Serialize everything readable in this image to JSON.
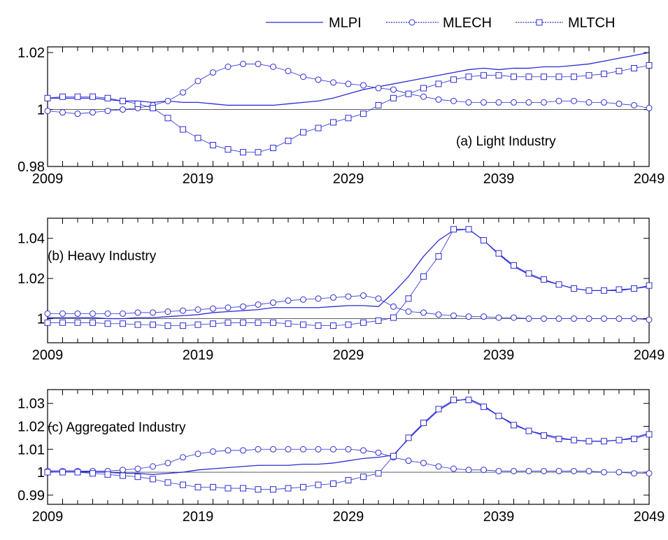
{
  "colors": {
    "series": "#2b2bd6",
    "axis": "#000000",
    "reference": "#000000"
  },
  "legend": {
    "placement": "top-right",
    "items": [
      {
        "name": "MLPI",
        "marker": "none"
      },
      {
        "name": "MLECH",
        "marker": "circle"
      },
      {
        "name": "MLTCH",
        "marker": "square"
      }
    ]
  },
  "chart_data": [
    {
      "type": "line",
      "title": "(a) Light Industry",
      "x": [
        2009,
        2010,
        2011,
        2012,
        2013,
        2014,
        2015,
        2016,
        2017,
        2018,
        2019,
        2020,
        2021,
        2022,
        2023,
        2024,
        2025,
        2026,
        2027,
        2028,
        2029,
        2030,
        2031,
        2032,
        2033,
        2034,
        2035,
        2036,
        2037,
        2038,
        2039,
        2040,
        2041,
        2042,
        2043,
        2044,
        2045,
        2046,
        2047,
        2048,
        2049
      ],
      "xticks": [
        2009,
        2019,
        2029,
        2039,
        2049
      ],
      "yticks": [
        0.98,
        1,
        1.02
      ],
      "ylim": [
        0.98,
        1.022
      ],
      "reference_line": 1,
      "series": [
        {
          "name": "MLPI",
          "marker": "none",
          "values": [
            1.004,
            1.004,
            1.004,
            1.004,
            1.0035,
            1.003,
            1.003,
            1.0025,
            1.003,
            1.0025,
            1.0025,
            1.002,
            1.0015,
            1.0015,
            1.0015,
            1.0015,
            1.002,
            1.0025,
            1.003,
            1.004,
            1.0055,
            1.007,
            1.008,
            1.009,
            1.01,
            1.011,
            1.012,
            1.013,
            1.014,
            1.0145,
            1.014,
            1.0145,
            1.0145,
            1.015,
            1.015,
            1.0155,
            1.016,
            1.017,
            1.018,
            1.019,
            1.02
          ]
        },
        {
          "name": "MLECH",
          "marker": "circle",
          "values": [
            0.9995,
            0.999,
            0.9985,
            0.999,
            0.9995,
            1.0,
            1.0005,
            1.0015,
            1.003,
            1.006,
            1.01,
            1.013,
            1.015,
            1.016,
            1.016,
            1.015,
            1.0135,
            1.0115,
            1.0105,
            1.0095,
            1.009,
            1.0085,
            1.0075,
            1.007,
            1.0055,
            1.0045,
            1.0035,
            1.003,
            1.0025,
            1.0025,
            1.0025,
            1.0025,
            1.0025,
            1.0025,
            1.003,
            1.003,
            1.0025,
            1.0025,
            1.002,
            1.0015,
            1.0005
          ]
        },
        {
          "name": "MLTCH",
          "marker": "square",
          "values": [
            1.004,
            1.0045,
            1.0045,
            1.0045,
            1.004,
            1.003,
            1.002,
            1.0005,
            0.997,
            0.993,
            0.99,
            0.9875,
            0.986,
            0.985,
            0.985,
            0.9865,
            0.989,
            0.992,
            0.9935,
            0.9955,
            0.997,
            0.9985,
            1.0015,
            1.004,
            1.0055,
            1.0075,
            1.009,
            1.0105,
            1.0115,
            1.012,
            1.012,
            1.0115,
            1.0115,
            1.0115,
            1.0115,
            1.0115,
            1.012,
            1.0125,
            1.0135,
            1.0145,
            1.0155
          ]
        }
      ]
    },
    {
      "type": "line",
      "title": "(b) Heavy Industry",
      "x": [
        2009,
        2010,
        2011,
        2012,
        2013,
        2014,
        2015,
        2016,
        2017,
        2018,
        2019,
        2020,
        2021,
        2022,
        2023,
        2024,
        2025,
        2026,
        2027,
        2028,
        2029,
        2030,
        2031,
        2032,
        2033,
        2034,
        2035,
        2036,
        2037,
        2038,
        2039,
        2040,
        2041,
        2042,
        2043,
        2044,
        2045,
        2046,
        2047,
        2048,
        2049
      ],
      "xticks": [
        2009,
        2019,
        2029,
        2039,
        2049
      ],
      "yticks": [
        1,
        1.02,
        1.04
      ],
      "ylim": [
        0.988,
        1.05
      ],
      "reference_line": 1,
      "series": [
        {
          "name": "MLPI",
          "marker": "none",
          "values": [
            1.0005,
            1.0005,
            1.0005,
            1.0005,
            1.0,
            1.0,
            1.0005,
            1.0005,
            1.001,
            1.0015,
            1.002,
            1.003,
            1.0035,
            1.004,
            1.0045,
            1.0055,
            1.0055,
            1.0055,
            1.0055,
            1.006,
            1.0065,
            1.0065,
            1.006,
            1.013,
            1.021,
            1.031,
            1.039,
            1.044,
            1.0445,
            1.039,
            1.032,
            1.026,
            1.022,
            1.019,
            1.017,
            1.015,
            1.014,
            1.014,
            1.014,
            1.015,
            1.016
          ]
        },
        {
          "name": "MLECH",
          "marker": "circle",
          "values": [
            1.0025,
            1.0025,
            1.0025,
            1.0025,
            1.0025,
            1.0025,
            1.003,
            1.003,
            1.0035,
            1.004,
            1.0045,
            1.005,
            1.0055,
            1.006,
            1.007,
            1.008,
            1.009,
            1.0095,
            1.01,
            1.0105,
            1.011,
            1.0115,
            1.01,
            1.006,
            1.0035,
            1.003,
            1.002,
            1.0015,
            1.001,
            1.001,
            1.0005,
            1.0005,
            1.0,
            1.0,
            1.0,
            1.0,
            1.0,
            1.0,
            1.0,
            1.0,
            0.9995
          ]
        },
        {
          "name": "MLTCH",
          "marker": "square",
          "values": [
            0.998,
            0.998,
            0.998,
            0.998,
            0.9975,
            0.9975,
            0.997,
            0.997,
            0.9965,
            0.9965,
            0.997,
            0.9975,
            0.998,
            0.998,
            0.998,
            0.998,
            0.9975,
            0.997,
            0.9965,
            0.9965,
            0.997,
            0.998,
            0.999,
            1.0005,
            1.01,
            1.021,
            1.031,
            1.0445,
            1.0445,
            1.039,
            1.0325,
            1.0265,
            1.0225,
            1.0195,
            1.017,
            1.015,
            1.014,
            1.014,
            1.0145,
            1.015,
            1.0165
          ]
        }
      ]
    },
    {
      "type": "line",
      "title": "(c) Aggregated Industry",
      "x": [
        2009,
        2010,
        2011,
        2012,
        2013,
        2014,
        2015,
        2016,
        2017,
        2018,
        2019,
        2020,
        2021,
        2022,
        2023,
        2024,
        2025,
        2026,
        2027,
        2028,
        2029,
        2030,
        2031,
        2032,
        2033,
        2034,
        2035,
        2036,
        2037,
        2038,
        2039,
        2040,
        2041,
        2042,
        2043,
        2044,
        2045,
        2046,
        2047,
        2048,
        2049
      ],
      "xticks": [
        2009,
        2019,
        2029,
        2039,
        2049
      ],
      "yticks": [
        0.99,
        1,
        1.01,
        1.02,
        1.03
      ],
      "ylim": [
        0.986,
        1.036
      ],
      "reference_line": 1,
      "series": [
        {
          "name": "MLPI",
          "marker": "none",
          "values": [
            1.0005,
            1.0005,
            1.0005,
            1.0,
            1.0,
            0.9995,
            0.9995,
            0.999,
            0.9995,
            1.0,
            1.001,
            1.0015,
            1.002,
            1.0025,
            1.003,
            1.003,
            1.003,
            1.0035,
            1.0035,
            1.004,
            1.005,
            1.006,
            1.0065,
            1.0075,
            1.0145,
            1.021,
            1.027,
            1.031,
            1.032,
            1.029,
            1.0245,
            1.021,
            1.018,
            1.0165,
            1.015,
            1.014,
            1.0135,
            1.0135,
            1.014,
            1.015,
            1.017
          ]
        },
        {
          "name": "MLECH",
          "marker": "circle",
          "values": [
            1.0005,
            1.0005,
            1.0005,
            1.0005,
            1.0005,
            1.001,
            1.0015,
            1.0025,
            1.004,
            1.0065,
            1.008,
            1.009,
            1.0095,
            1.0095,
            1.01,
            1.01,
            1.01,
            1.01,
            1.01,
            1.01,
            1.01,
            1.0095,
            1.0085,
            1.0065,
            1.005,
            1.004,
            1.0025,
            1.0015,
            1.001,
            1.001,
            1.0005,
            1.0005,
            1.0005,
            1.0005,
            1.0005,
            1.0005,
            1.0005,
            1.0,
            1.0,
            0.9995,
            0.9995
          ]
        },
        {
          "name": "MLTCH",
          "marker": "square",
          "values": [
            1.0,
            1.0,
            1.0,
            0.9995,
            0.999,
            0.9985,
            0.998,
            0.997,
            0.9955,
            0.9945,
            0.9935,
            0.9935,
            0.993,
            0.993,
            0.9925,
            0.9925,
            0.993,
            0.9935,
            0.9945,
            0.995,
            0.9965,
            0.998,
            0.9995,
            1.007,
            1.015,
            1.0215,
            1.0275,
            1.0315,
            1.0315,
            1.0285,
            1.0245,
            1.0205,
            1.018,
            1.016,
            1.0145,
            1.014,
            1.0135,
            1.0135,
            1.014,
            1.0145,
            1.0165
          ]
        }
      ]
    }
  ]
}
